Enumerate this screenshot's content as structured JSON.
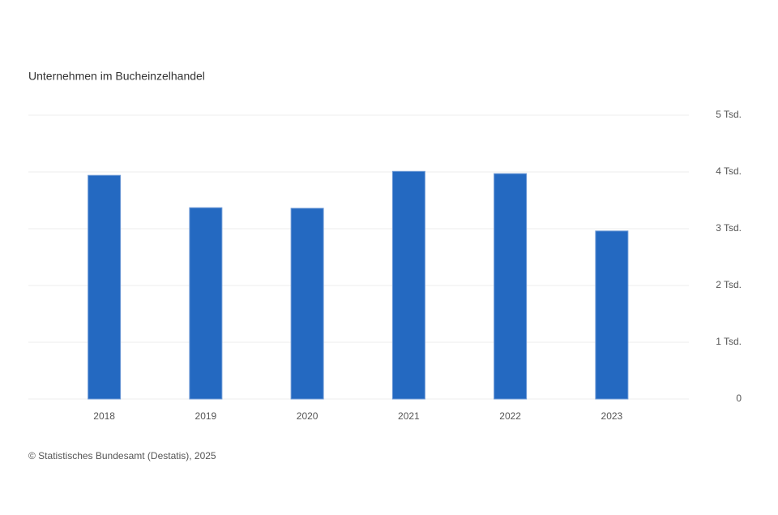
{
  "chart_data": {
    "type": "bar",
    "title": "Unternehmen im Bucheinzelhandel",
    "categories": [
      "2018",
      "2019",
      "2020",
      "2021",
      "2022",
      "2023"
    ],
    "values": [
      3940,
      3370,
      3360,
      4010,
      3970,
      2960
    ],
    "color": "#2469c1",
    "ylim": [
      0,
      5000
    ],
    "yticks": [
      0,
      {
        "value": 1000,
        "label": "1 Tsd."
      },
      {
        "value": 2000,
        "label": "2 Tsd."
      },
      {
        "value": 3000,
        "label": "3 Tsd."
      },
      {
        "value": 4000,
        "label": "4 Tsd."
      },
      {
        "value": 5000,
        "label": "5 Tsd."
      }
    ],
    "grid": true,
    "source": "© Statistisches Bundesamt (Destatis), 2025"
  }
}
